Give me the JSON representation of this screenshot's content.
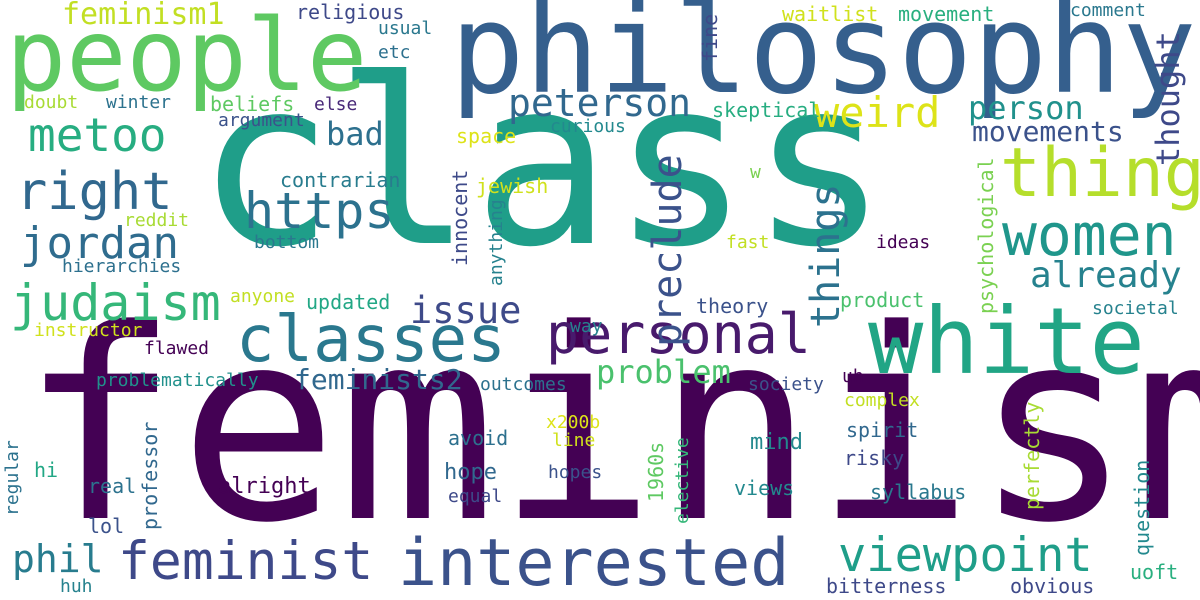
{
  "words": [
    {
      "text": "feminism",
      "color": "#440154"
    },
    {
      "text": "class",
      "color": "#1f9e89"
    },
    {
      "text": "philosophy",
      "color": "#355f8d"
    },
    {
      "text": "people",
      "color": "#5ec962"
    },
    {
      "text": "white",
      "color": "#21a585"
    },
    {
      "text": "interested",
      "color": "#3b528b"
    },
    {
      "text": "classes",
      "color": "#2a788e"
    },
    {
      "text": "thing",
      "color": "#b5de2b"
    },
    {
      "text": "women",
      "color": "#1f968b"
    },
    {
      "text": "personal",
      "color": "#481a6c"
    },
    {
      "text": "feminist",
      "color": "#3e4989"
    },
    {
      "text": "viewpoint",
      "color": "#1f9e89"
    },
    {
      "text": "https",
      "color": "#2c728e"
    },
    {
      "text": "right",
      "color": "#31688e"
    },
    {
      "text": "jordan",
      "color": "#2f6c8e"
    },
    {
      "text": "judaism",
      "color": "#35b779"
    },
    {
      "text": "metoo",
      "color": "#27ad81"
    },
    {
      "text": "peterson",
      "color": "#31688e"
    },
    {
      "text": "weird",
      "color": "#dde318"
    },
    {
      "text": "preclude",
      "color": "#3b528b"
    },
    {
      "text": "things",
      "color": "#2c728e"
    },
    {
      "text": "already",
      "color": "#26828e"
    },
    {
      "text": "issue",
      "color": "#3e4a89"
    },
    {
      "text": "bad",
      "color": "#2d708e"
    },
    {
      "text": "problem",
      "color": "#4ac16d"
    },
    {
      "text": "person",
      "color": "#21918c"
    },
    {
      "text": "movements",
      "color": "#3b528b"
    },
    {
      "text": "thought",
      "color": "#3e4989"
    },
    {
      "text": "feminists2",
      "color": "#31688e"
    },
    {
      "text": "phil",
      "color": "#287c8e"
    },
    {
      "text": "feminism1",
      "color": "#c2df23"
    },
    {
      "text": "religious",
      "color": "#3e4989"
    },
    {
      "text": "waitlist",
      "color": "#d0e11c"
    },
    {
      "text": "movement",
      "color": "#29af7f"
    },
    {
      "text": "comment",
      "color": "#2a788e"
    },
    {
      "text": "usual",
      "color": "#2a788e"
    },
    {
      "text": "etc",
      "color": "#2d708e"
    },
    {
      "text": "fine",
      "color": "#3e4989"
    },
    {
      "text": "doubt",
      "color": "#a8db34"
    },
    {
      "text": "winter",
      "color": "#2c728e"
    },
    {
      "text": "beliefs",
      "color": "#5ec962"
    },
    {
      "text": "else",
      "color": "#482878"
    },
    {
      "text": "argument",
      "color": "#3b528b"
    },
    {
      "text": "skeptical",
      "color": "#27ad81"
    },
    {
      "text": "space",
      "color": "#dde318"
    },
    {
      "text": "curious",
      "color": "#23898e"
    },
    {
      "text": "contrarian",
      "color": "#287c8e"
    },
    {
      "text": "jewish",
      "color": "#d0e11c"
    },
    {
      "text": "w",
      "color": "#7ad151"
    },
    {
      "text": "reddit",
      "color": "#a8db34"
    },
    {
      "text": "bottom",
      "color": "#2a788e"
    },
    {
      "text": "innocent",
      "color": "#3e4a89"
    },
    {
      "text": "anything",
      "color": "#26828e"
    },
    {
      "text": "fast",
      "color": "#c2df23"
    },
    {
      "text": "ideas",
      "color": "#440154"
    },
    {
      "text": "psychological",
      "color": "#7ad151"
    },
    {
      "text": "hierarchies",
      "color": "#2d708e"
    },
    {
      "text": "anyone",
      "color": "#c2df23"
    },
    {
      "text": "updated",
      "color": "#22a785"
    },
    {
      "text": "way",
      "color": "#26828e"
    },
    {
      "text": "theory",
      "color": "#3b528b"
    },
    {
      "text": "product",
      "color": "#4ac16d"
    },
    {
      "text": "societal",
      "color": "#26828e"
    },
    {
      "text": "instructor",
      "color": "#d0e11c"
    },
    {
      "text": "flawed",
      "color": "#440154"
    },
    {
      "text": "problematically",
      "color": "#21918c"
    },
    {
      "text": "outcomes",
      "color": "#2c728e"
    },
    {
      "text": "society",
      "color": "#3b528b"
    },
    {
      "text": "uh",
      "color": "#440154"
    },
    {
      "text": "complex",
      "color": "#c2df23"
    },
    {
      "text": "x200b",
      "color": "#dde318"
    },
    {
      "text": "line",
      "color": "#d0e11c"
    },
    {
      "text": "avoid",
      "color": "#2d708e"
    },
    {
      "text": "regular",
      "color": "#2c728e"
    },
    {
      "text": "professor",
      "color": "#31688e"
    },
    {
      "text": "1960s",
      "color": "#5ec962"
    },
    {
      "text": "elective",
      "color": "#35b779"
    },
    {
      "text": "mind",
      "color": "#23898e"
    },
    {
      "text": "spirit",
      "color": "#31688e"
    },
    {
      "text": "risky",
      "color": "#3e4989"
    },
    {
      "text": "perfectly",
      "color": "#a8db34"
    },
    {
      "text": "hi",
      "color": "#22a785"
    },
    {
      "text": "real",
      "color": "#2c728e"
    },
    {
      "text": "alright",
      "color": "#440154"
    },
    {
      "text": "hope",
      "color": "#31688e"
    },
    {
      "text": "hopes",
      "color": "#3b528b"
    },
    {
      "text": "equal",
      "color": "#3e4989"
    },
    {
      "text": "views",
      "color": "#23898e"
    },
    {
      "text": "syllabus",
      "color": "#2a788e"
    },
    {
      "text": "question",
      "color": "#23898e"
    },
    {
      "text": "lol",
      "color": "#3b528b"
    },
    {
      "text": "huh",
      "color": "#26828e"
    },
    {
      "text": "bitterness",
      "color": "#3e4989"
    },
    {
      "text": "obvious",
      "color": "#3e4989"
    },
    {
      "text": "uoft",
      "color": "#29af7f"
    }
  ]
}
